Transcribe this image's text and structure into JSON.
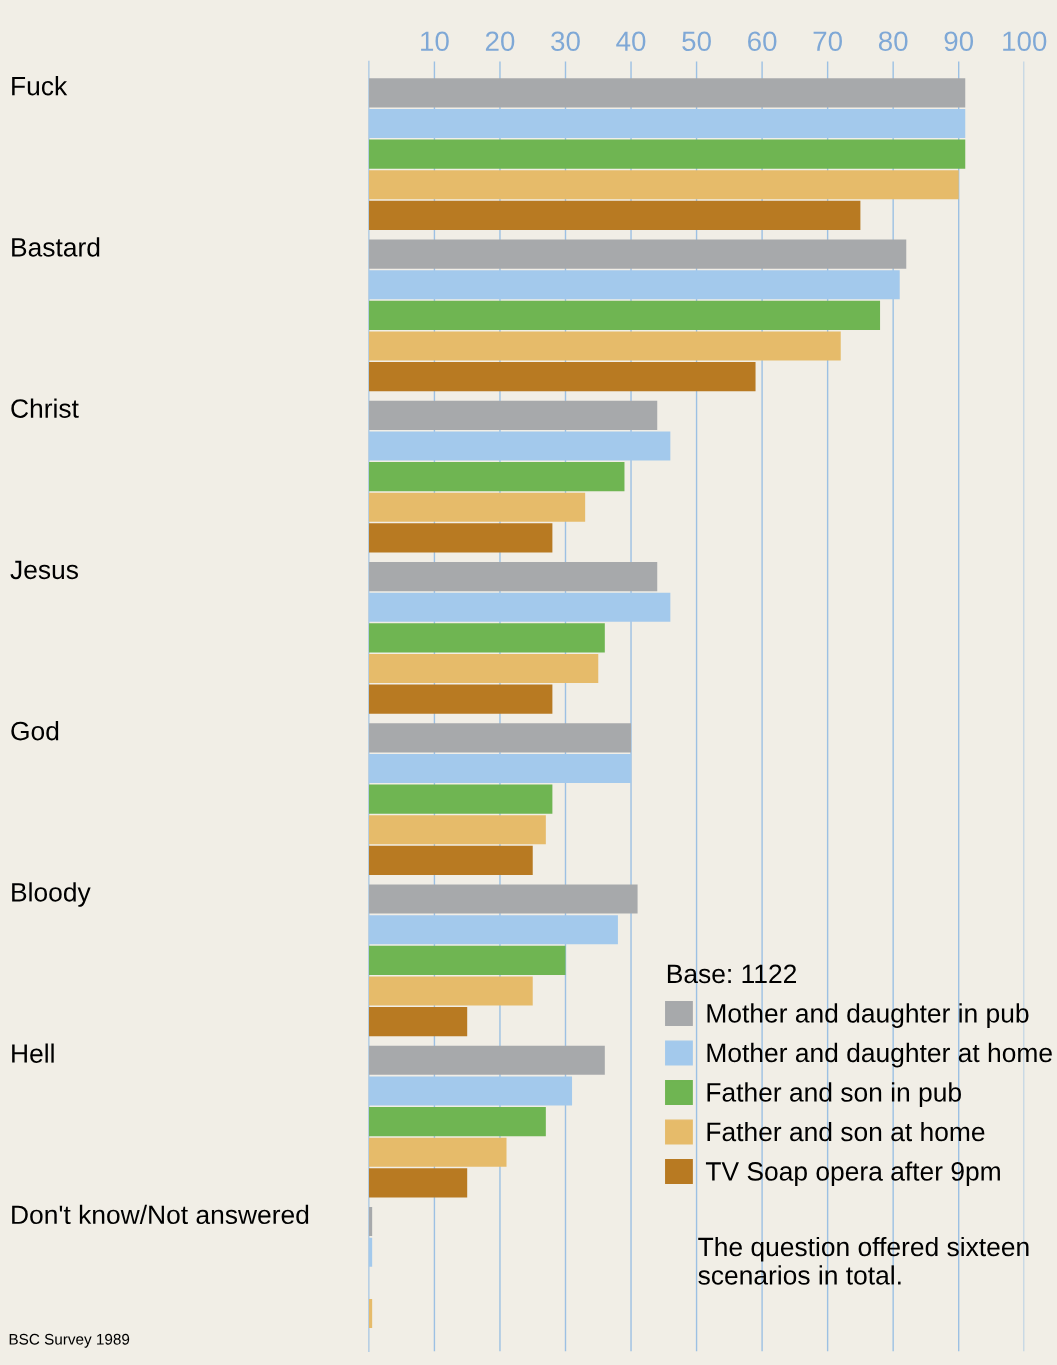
{
  "chart_data": {
    "type": "bar",
    "orientation": "horizontal",
    "categories": [
      "Fuck",
      "Bastard",
      "Christ",
      "Jesus",
      "God",
      "Bloody",
      "Hell",
      "Don't know/Not answered"
    ],
    "series": [
      {
        "name": "Mother and daughter in pub",
        "color": "#a7a9ab",
        "values": [
          91,
          82,
          44,
          44,
          40,
          41,
          36,
          0.5
        ]
      },
      {
        "name": "Mother and daughter at home",
        "color": "#a3c9ec",
        "values": [
          91,
          81,
          46,
          46,
          40,
          38,
          31,
          0.5
        ]
      },
      {
        "name": "Father and son in pub",
        "color": "#6fb552",
        "values": [
          91,
          78,
          39,
          36,
          28,
          30,
          27,
          0
        ]
      },
      {
        "name": "Father and son at home",
        "color": "#e6bb6a",
        "values": [
          90,
          72,
          33,
          35,
          27,
          25,
          21,
          0.5
        ]
      },
      {
        "name": "TV Soap opera after 9pm",
        "color": "#b87a22",
        "values": [
          75,
          59,
          28,
          28,
          25,
          15,
          15,
          0
        ]
      }
    ],
    "xlim": [
      0,
      100
    ],
    "xticks": [
      10,
      20,
      30,
      40,
      50,
      60,
      70,
      80,
      90,
      100
    ],
    "grid": "x",
    "legend": "bottom right",
    "legend_title": "Base: 1122",
    "annotations": [
      "The question offered sixteen scenarios in total.",
      "BSC Survey 1989"
    ]
  }
}
